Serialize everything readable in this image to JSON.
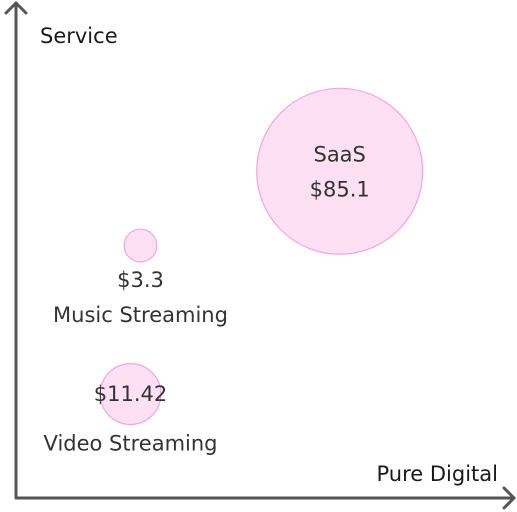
{
  "chart_data": {
    "type": "scatter",
    "title": "",
    "xlabel": "Pure Digital",
    "ylabel": "Service",
    "grid": false,
    "legend": "none",
    "colors": {
      "bubble_fill": "#fde0f4",
      "bubble_stroke": "#f2a6dc",
      "axis": "#555555",
      "text": "#333333"
    },
    "points": [
      {
        "name": "SaaS",
        "value_label": "$85.1",
        "value": 85.1,
        "x": 0.65,
        "y": 0.66,
        "label_position": "inside"
      },
      {
        "name": "Music Streaming",
        "value_label": "$3.3",
        "value": 3.3,
        "x": 0.25,
        "y": 0.51,
        "label_position": "below"
      },
      {
        "name": "Video Streaming",
        "value_label": "$11.42",
        "value": 11.42,
        "x": 0.23,
        "y": 0.21,
        "label_position": "inside"
      }
    ]
  }
}
